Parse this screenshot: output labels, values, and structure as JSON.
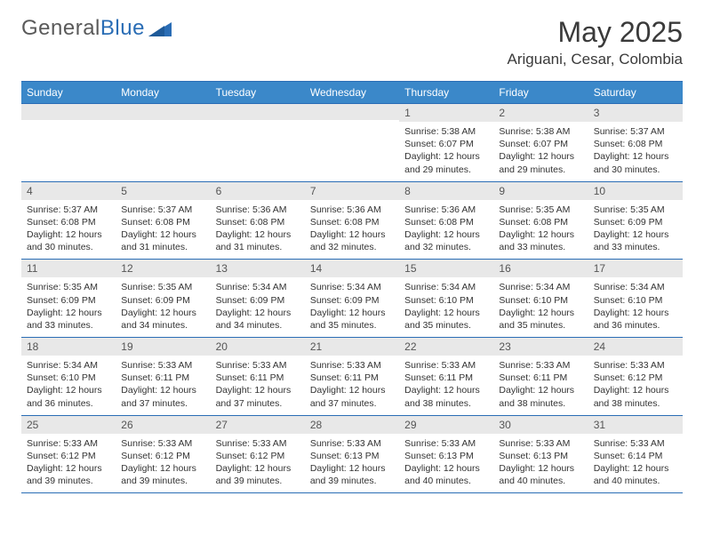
{
  "logo": {
    "part1": "General",
    "part2": "Blue"
  },
  "title": "May 2025",
  "location": "Ariguani, Cesar, Colombia",
  "colors": {
    "header_bg": "#3b88c9",
    "header_border": "#2a6db5",
    "daynum_bg": "#e8e8e8",
    "text": "#333333",
    "logo_gray": "#5a5a5a",
    "logo_blue": "#2a6db5"
  },
  "weekdays": [
    "Sunday",
    "Monday",
    "Tuesday",
    "Wednesday",
    "Thursday",
    "Friday",
    "Saturday"
  ],
  "weeks": [
    [
      {
        "day": "",
        "sunrise": "",
        "sunset": "",
        "daylight": ""
      },
      {
        "day": "",
        "sunrise": "",
        "sunset": "",
        "daylight": ""
      },
      {
        "day": "",
        "sunrise": "",
        "sunset": "",
        "daylight": ""
      },
      {
        "day": "",
        "sunrise": "",
        "sunset": "",
        "daylight": ""
      },
      {
        "day": "1",
        "sunrise": "Sunrise: 5:38 AM",
        "sunset": "Sunset: 6:07 PM",
        "daylight": "Daylight: 12 hours and 29 minutes."
      },
      {
        "day": "2",
        "sunrise": "Sunrise: 5:38 AM",
        "sunset": "Sunset: 6:07 PM",
        "daylight": "Daylight: 12 hours and 29 minutes."
      },
      {
        "day": "3",
        "sunrise": "Sunrise: 5:37 AM",
        "sunset": "Sunset: 6:08 PM",
        "daylight": "Daylight: 12 hours and 30 minutes."
      }
    ],
    [
      {
        "day": "4",
        "sunrise": "Sunrise: 5:37 AM",
        "sunset": "Sunset: 6:08 PM",
        "daylight": "Daylight: 12 hours and 30 minutes."
      },
      {
        "day": "5",
        "sunrise": "Sunrise: 5:37 AM",
        "sunset": "Sunset: 6:08 PM",
        "daylight": "Daylight: 12 hours and 31 minutes."
      },
      {
        "day": "6",
        "sunrise": "Sunrise: 5:36 AM",
        "sunset": "Sunset: 6:08 PM",
        "daylight": "Daylight: 12 hours and 31 minutes."
      },
      {
        "day": "7",
        "sunrise": "Sunrise: 5:36 AM",
        "sunset": "Sunset: 6:08 PM",
        "daylight": "Daylight: 12 hours and 32 minutes."
      },
      {
        "day": "8",
        "sunrise": "Sunrise: 5:36 AM",
        "sunset": "Sunset: 6:08 PM",
        "daylight": "Daylight: 12 hours and 32 minutes."
      },
      {
        "day": "9",
        "sunrise": "Sunrise: 5:35 AM",
        "sunset": "Sunset: 6:08 PM",
        "daylight": "Daylight: 12 hours and 33 minutes."
      },
      {
        "day": "10",
        "sunrise": "Sunrise: 5:35 AM",
        "sunset": "Sunset: 6:09 PM",
        "daylight": "Daylight: 12 hours and 33 minutes."
      }
    ],
    [
      {
        "day": "11",
        "sunrise": "Sunrise: 5:35 AM",
        "sunset": "Sunset: 6:09 PM",
        "daylight": "Daylight: 12 hours and 33 minutes."
      },
      {
        "day": "12",
        "sunrise": "Sunrise: 5:35 AM",
        "sunset": "Sunset: 6:09 PM",
        "daylight": "Daylight: 12 hours and 34 minutes."
      },
      {
        "day": "13",
        "sunrise": "Sunrise: 5:34 AM",
        "sunset": "Sunset: 6:09 PM",
        "daylight": "Daylight: 12 hours and 34 minutes."
      },
      {
        "day": "14",
        "sunrise": "Sunrise: 5:34 AM",
        "sunset": "Sunset: 6:09 PM",
        "daylight": "Daylight: 12 hours and 35 minutes."
      },
      {
        "day": "15",
        "sunrise": "Sunrise: 5:34 AM",
        "sunset": "Sunset: 6:10 PM",
        "daylight": "Daylight: 12 hours and 35 minutes."
      },
      {
        "day": "16",
        "sunrise": "Sunrise: 5:34 AM",
        "sunset": "Sunset: 6:10 PM",
        "daylight": "Daylight: 12 hours and 35 minutes."
      },
      {
        "day": "17",
        "sunrise": "Sunrise: 5:34 AM",
        "sunset": "Sunset: 6:10 PM",
        "daylight": "Daylight: 12 hours and 36 minutes."
      }
    ],
    [
      {
        "day": "18",
        "sunrise": "Sunrise: 5:34 AM",
        "sunset": "Sunset: 6:10 PM",
        "daylight": "Daylight: 12 hours and 36 minutes."
      },
      {
        "day": "19",
        "sunrise": "Sunrise: 5:33 AM",
        "sunset": "Sunset: 6:11 PM",
        "daylight": "Daylight: 12 hours and 37 minutes."
      },
      {
        "day": "20",
        "sunrise": "Sunrise: 5:33 AM",
        "sunset": "Sunset: 6:11 PM",
        "daylight": "Daylight: 12 hours and 37 minutes."
      },
      {
        "day": "21",
        "sunrise": "Sunrise: 5:33 AM",
        "sunset": "Sunset: 6:11 PM",
        "daylight": "Daylight: 12 hours and 37 minutes."
      },
      {
        "day": "22",
        "sunrise": "Sunrise: 5:33 AM",
        "sunset": "Sunset: 6:11 PM",
        "daylight": "Daylight: 12 hours and 38 minutes."
      },
      {
        "day": "23",
        "sunrise": "Sunrise: 5:33 AM",
        "sunset": "Sunset: 6:11 PM",
        "daylight": "Daylight: 12 hours and 38 minutes."
      },
      {
        "day": "24",
        "sunrise": "Sunrise: 5:33 AM",
        "sunset": "Sunset: 6:12 PM",
        "daylight": "Daylight: 12 hours and 38 minutes."
      }
    ],
    [
      {
        "day": "25",
        "sunrise": "Sunrise: 5:33 AM",
        "sunset": "Sunset: 6:12 PM",
        "daylight": "Daylight: 12 hours and 39 minutes."
      },
      {
        "day": "26",
        "sunrise": "Sunrise: 5:33 AM",
        "sunset": "Sunset: 6:12 PM",
        "daylight": "Daylight: 12 hours and 39 minutes."
      },
      {
        "day": "27",
        "sunrise": "Sunrise: 5:33 AM",
        "sunset": "Sunset: 6:12 PM",
        "daylight": "Daylight: 12 hours and 39 minutes."
      },
      {
        "day": "28",
        "sunrise": "Sunrise: 5:33 AM",
        "sunset": "Sunset: 6:13 PM",
        "daylight": "Daylight: 12 hours and 39 minutes."
      },
      {
        "day": "29",
        "sunrise": "Sunrise: 5:33 AM",
        "sunset": "Sunset: 6:13 PM",
        "daylight": "Daylight: 12 hours and 40 minutes."
      },
      {
        "day": "30",
        "sunrise": "Sunrise: 5:33 AM",
        "sunset": "Sunset: 6:13 PM",
        "daylight": "Daylight: 12 hours and 40 minutes."
      },
      {
        "day": "31",
        "sunrise": "Sunrise: 5:33 AM",
        "sunset": "Sunset: 6:14 PM",
        "daylight": "Daylight: 12 hours and 40 minutes."
      }
    ]
  ]
}
